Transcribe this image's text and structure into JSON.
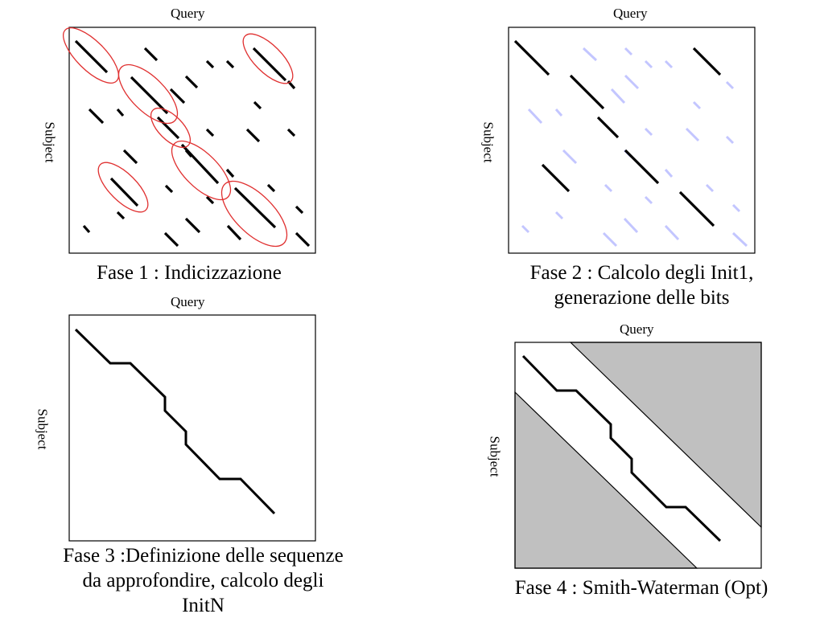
{
  "colors": {
    "match": "#000000",
    "highlight": "#e03030",
    "faint": "#c3c6ff",
    "band_shade": "#c0c0c0"
  },
  "panels": [
    {
      "query": "Query",
      "subject": "Subject",
      "caption": [
        "Fase 1 : Indicizzazione"
      ]
    },
    {
      "query": "Query",
      "subject": "Subject",
      "caption": [
        "Fase 2 : Calcolo degli Init1,",
        "generazione delle bits"
      ]
    },
    {
      "query": "Query",
      "subject": "Subject",
      "caption": [
        "Fase 3 :Definizione delle sequenze",
        "da approfondire, calcolo degli",
        "InitN"
      ]
    },
    {
      "query": "Query",
      "subject": "Subject",
      "caption": [
        "Fase 4 : Smith-Waterman (Opt)"
      ]
    }
  ]
}
